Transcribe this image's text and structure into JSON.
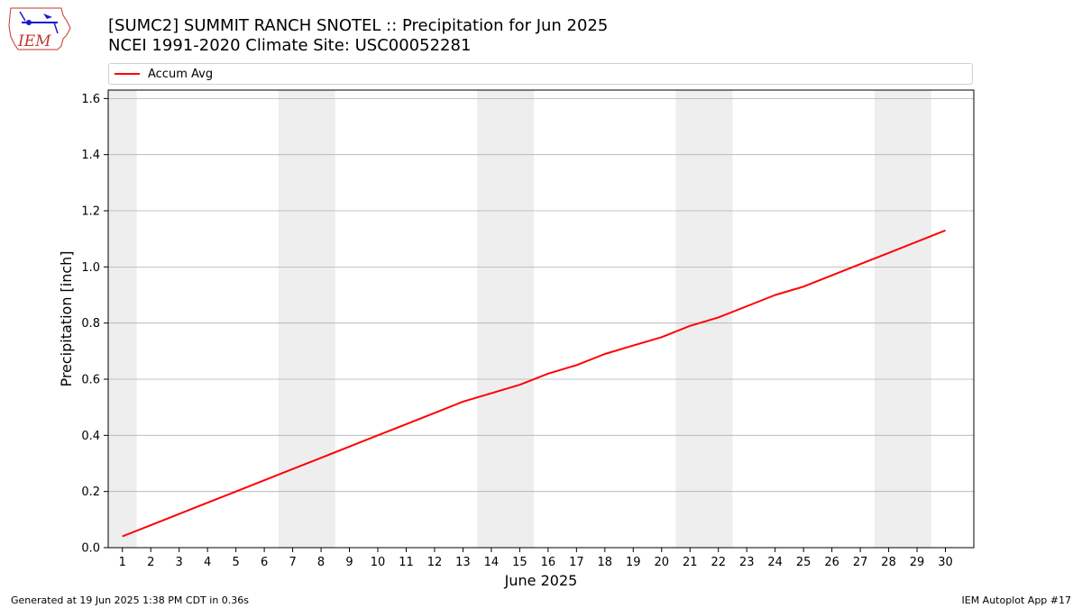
{
  "header": {
    "title_line1": "[SUMC2] SUMMIT RANCH SNOTEL :: Precipitation for Jun 2025",
    "title_line2": "NCEI 1991-2020 Climate Site: USC00052281",
    "logo_text": "IEM"
  },
  "footer": {
    "generated": "Generated at 19 Jun 2025 1:38 PM CDT in 0.36s",
    "app": "IEM Autoplot App #17"
  },
  "chart_data": {
    "type": "line",
    "title": "[SUMC2] SUMMIT RANCH SNOTEL :: Precipitation for Jun 2025",
    "subtitle": "NCEI 1991-2020 Climate Site: USC00052281",
    "xlabel": "June 2025",
    "ylabel": "Precipitation [inch]",
    "xlim": [
      0.5,
      31
    ],
    "ylim": [
      0,
      1.63
    ],
    "x_ticks": [
      1,
      2,
      3,
      4,
      5,
      6,
      7,
      8,
      9,
      10,
      11,
      12,
      13,
      14,
      15,
      16,
      17,
      18,
      19,
      20,
      21,
      22,
      23,
      24,
      25,
      26,
      27,
      28,
      29,
      30
    ],
    "y_ticks": [
      0.0,
      0.2,
      0.4,
      0.6,
      0.8,
      1.0,
      1.2,
      1.4,
      1.6
    ],
    "y_tick_labels": [
      "0.0",
      "0.2",
      "0.4",
      "0.6",
      "0.8",
      "1.0",
      "1.2",
      "1.4",
      "1.6"
    ],
    "grid": "y",
    "legend_position": "top",
    "weekend_shading": [
      [
        0.5,
        1.5
      ],
      [
        6.5,
        8.5
      ],
      [
        13.5,
        15.5
      ],
      [
        20.5,
        22.5
      ],
      [
        27.5,
        29.5
      ]
    ],
    "colors": {
      "line": "#ff0000",
      "shade": "#eeeeee",
      "grid": "#b0b0b0"
    },
    "series": [
      {
        "name": "Accum Avg",
        "x": [
          1,
          2,
          3,
          4,
          5,
          6,
          7,
          8,
          9,
          10,
          11,
          12,
          13,
          14,
          15,
          16,
          17,
          18,
          19,
          20,
          21,
          22,
          23,
          24,
          25,
          26,
          27,
          28,
          29,
          30
        ],
        "values": [
          0.04,
          0.08,
          0.12,
          0.16,
          0.2,
          0.24,
          0.28,
          0.32,
          0.36,
          0.4,
          0.44,
          0.48,
          0.52,
          0.55,
          0.58,
          0.62,
          0.65,
          0.69,
          0.72,
          0.75,
          0.79,
          0.82,
          0.86,
          0.9,
          0.93,
          0.97,
          1.01,
          1.05,
          1.09,
          1.13
        ]
      }
    ]
  }
}
